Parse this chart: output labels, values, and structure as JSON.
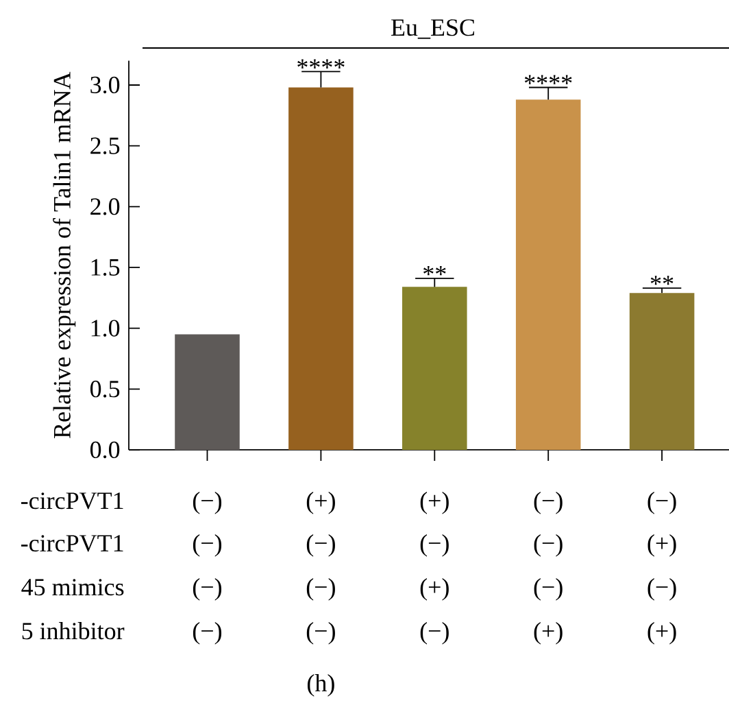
{
  "chart_data": {
    "type": "bar",
    "title": "Eu_ESC",
    "ylabel": "Relative expression of Talin1 mRNA",
    "categories": [
      null,
      null,
      null,
      null,
      null
    ],
    "values": [
      0.95,
      2.98,
      1.34,
      2.88,
      1.29
    ],
    "colors": [
      "#5e5a58",
      "#96611f",
      "#86822b",
      "#c9924a",
      "#8c7a30"
    ],
    "errors": [
      null,
      [
        2.98,
        3.11
      ],
      [
        1.34,
        1.41
      ],
      [
        2.88,
        2.98
      ],
      [
        1.29,
        1.33
      ]
    ],
    "value_labels": [
      null,
      "****",
      "**",
      "****",
      "**"
    ],
    "ylim": [
      0,
      3.2
    ],
    "yticks": [
      {
        "value": 0,
        "label": "0.0"
      },
      0.5,
      {
        "value": 1,
        "label": "1.0"
      },
      1.5,
      {
        "value": 2,
        "label": "2.0"
      },
      2.5,
      {
        "value": 3,
        "label": "3.0"
      }
    ],
    "annotations": [
      "-circPVT1",
      "(−)",
      "(+)",
      "(+)",
      "(−)",
      "(−)",
      "-circPVT1",
      "(−)",
      "(−)",
      "(−)",
      "(−)",
      "(+)",
      "45 mimics",
      "(−)",
      "(−)",
      "(+)",
      "(−)",
      "(−)",
      "5 inhibitor",
      "(−)",
      "(−)",
      "(−)",
      "(+)",
      "(+)",
      "(h)"
    ],
    "grid": false
  }
}
